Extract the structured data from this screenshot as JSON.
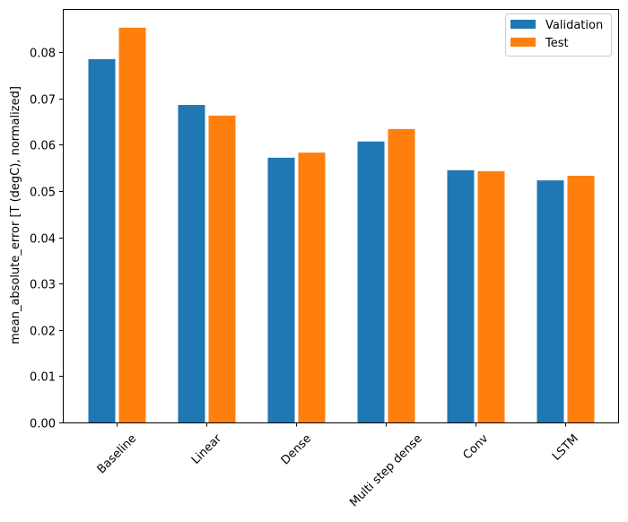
{
  "chart_data": {
    "type": "bar",
    "title": "",
    "xlabel": "",
    "ylabel": "mean_absolute_error [T (degC), normalized]",
    "categories": [
      "Baseline",
      "Linear",
      "Dense",
      "Multi step dense",
      "Conv",
      "LSTM"
    ],
    "series": [
      {
        "name": "Validation",
        "color": "#1f77b4",
        "values": [
          0.0785,
          0.0686,
          0.0572,
          0.0607,
          0.0545,
          0.0523
        ]
      },
      {
        "name": "Test",
        "color": "#ff7f0e",
        "values": [
          0.0853,
          0.0663,
          0.0583,
          0.0634,
          0.0543,
          0.0533
        ]
      }
    ],
    "ylim": [
      0,
      0.0895
    ],
    "yticks": [
      "0.00",
      "0.01",
      "0.02",
      "0.03",
      "0.04",
      "0.05",
      "0.06",
      "0.07",
      "0.08"
    ],
    "grid": false,
    "legend_position": "top-right"
  }
}
